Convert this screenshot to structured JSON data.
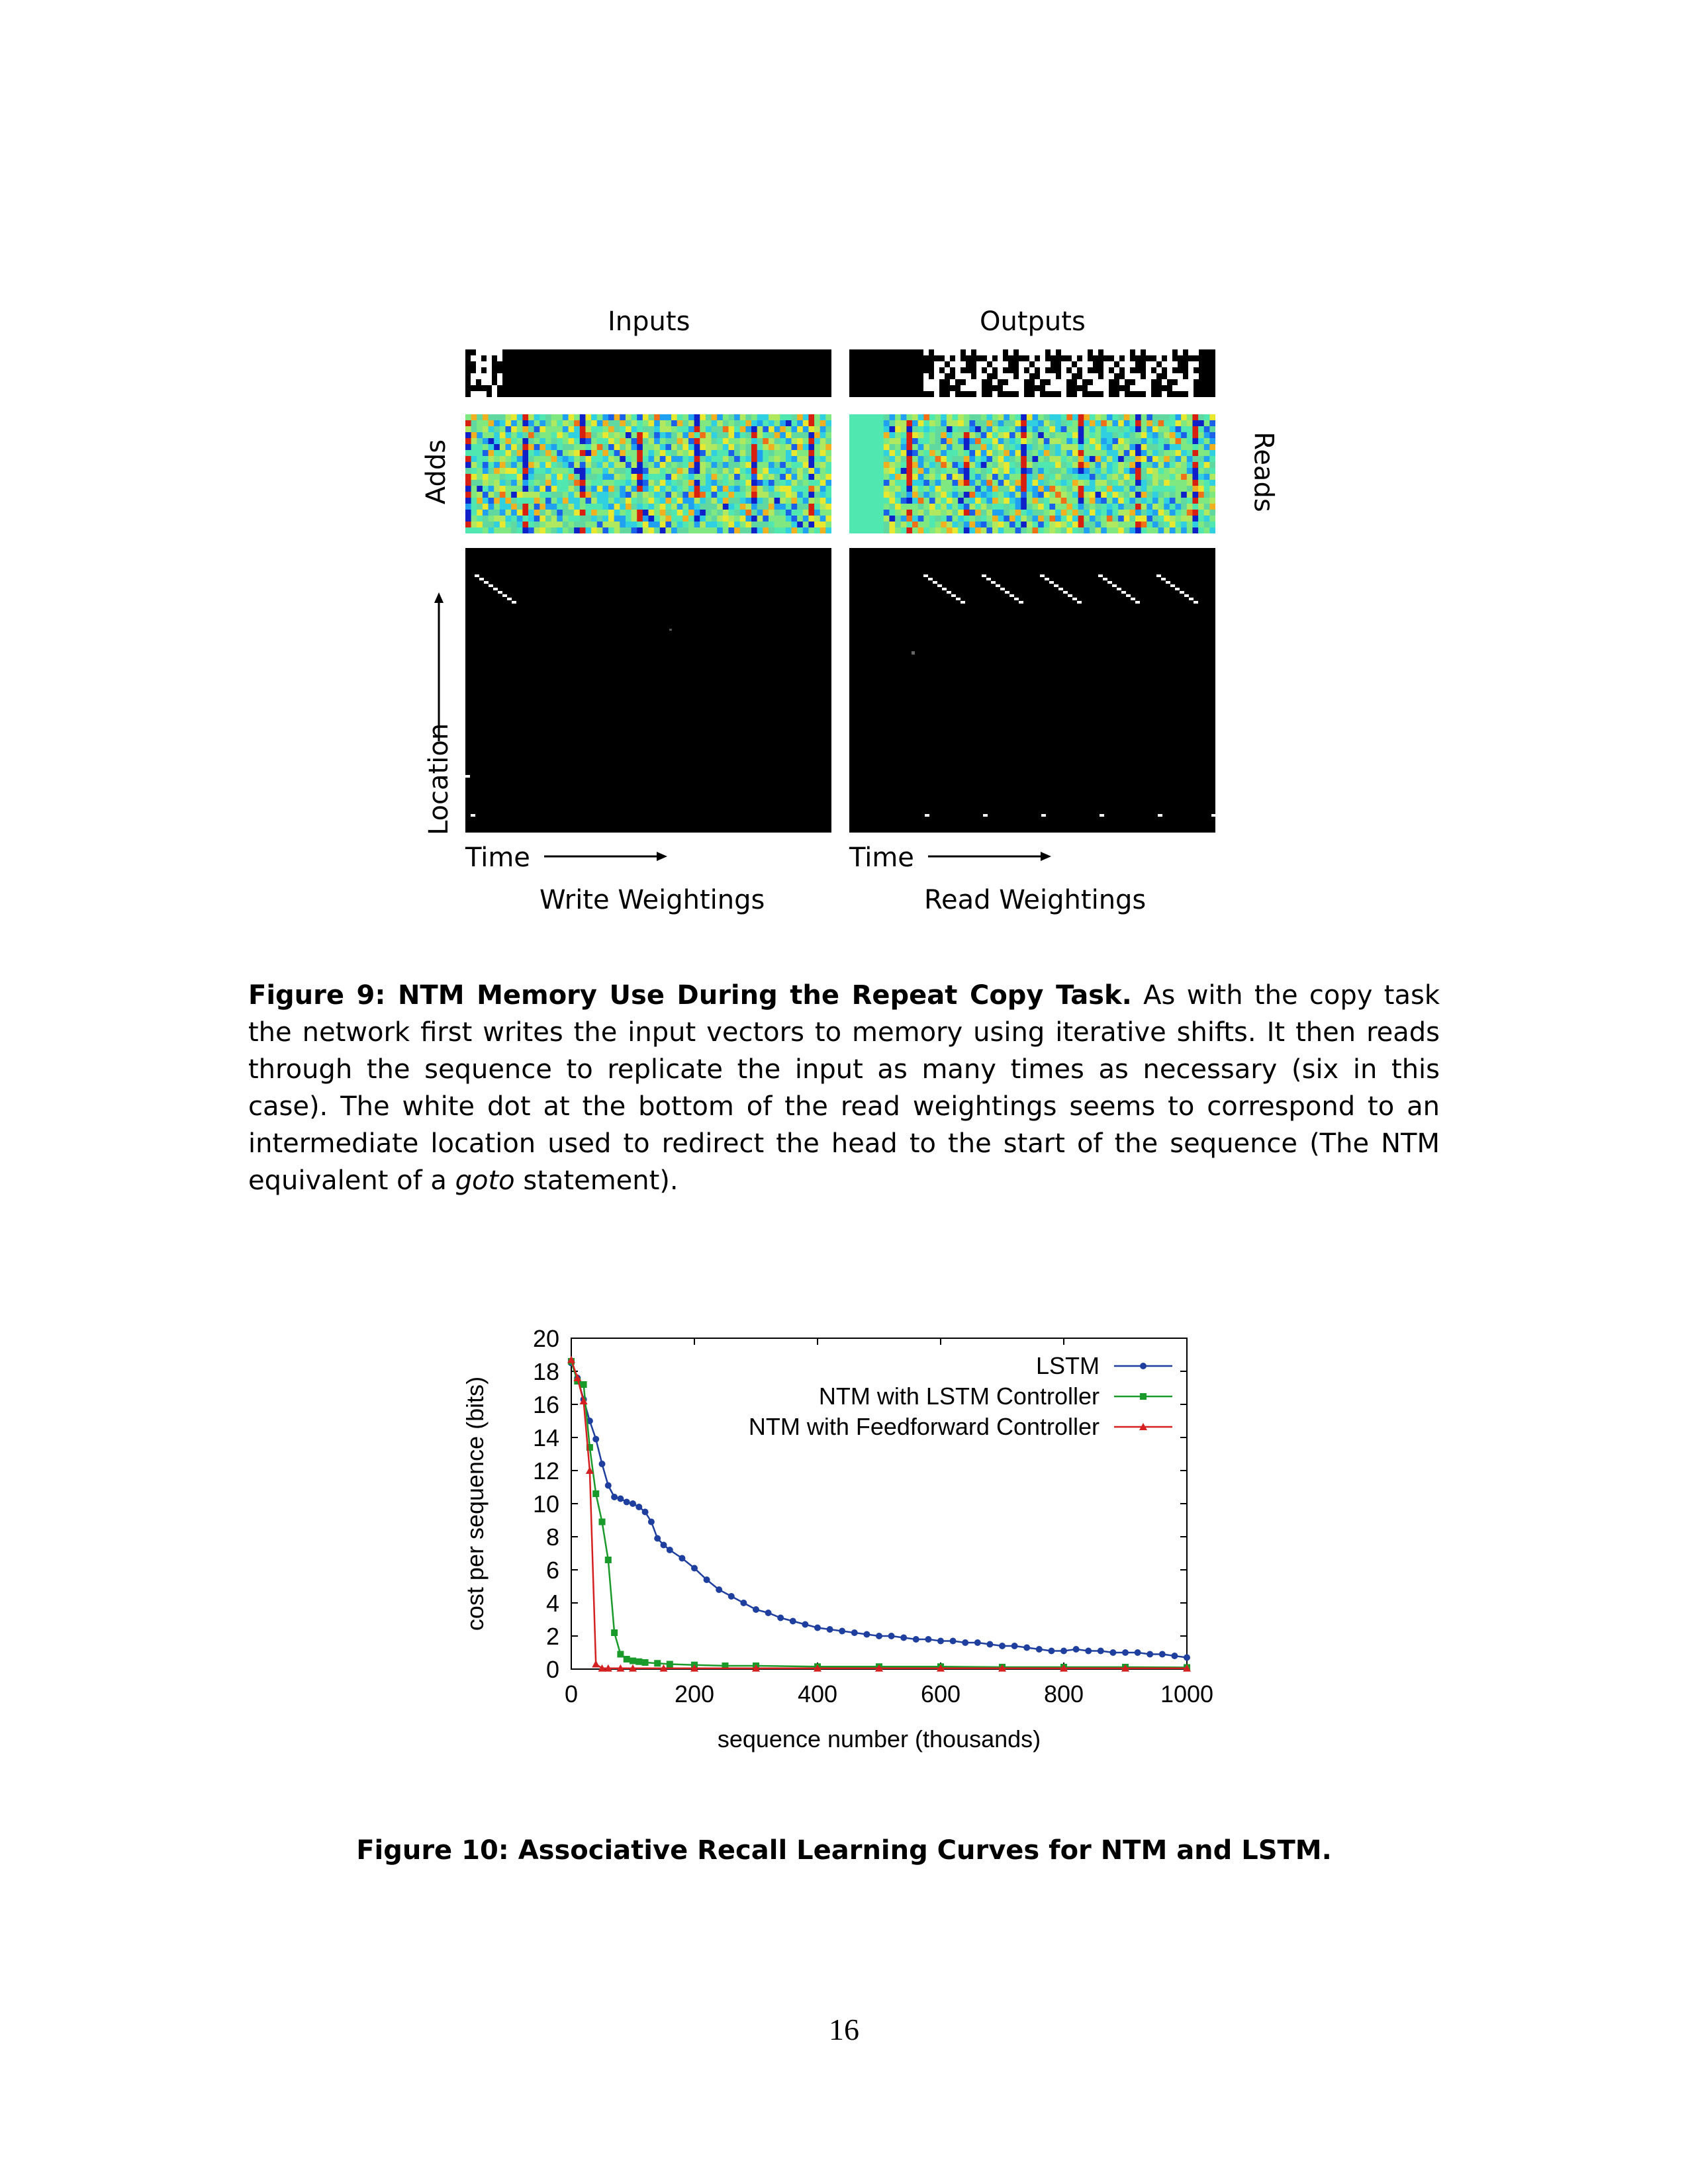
{
  "figure9": {
    "inputs_label": "Inputs",
    "outputs_label": "Outputs",
    "adds_label": "Adds",
    "reads_label": "Reads",
    "location_label": "Location",
    "time_label_left": "Time",
    "time_label_right": "Time",
    "write_label": "Write Weightings",
    "read_label": "Read Weightings",
    "caption_bold": "Figure 9: NTM Memory Use During the Repeat Copy Task.",
    "caption_text_1": " As with the copy task the network first writes the input vectors to memory using iterative shifts. It then reads through the sequence to replicate the input as many times as necessary (six in this case). The white dot at the bottom of the read weightings seems to correspond to an intermediate location used to redirect the head to the start of the sequence (The NTM equivalent of a ",
    "caption_italic": "goto",
    "caption_text_2": " statement)."
  },
  "figure10": {
    "caption": "Figure 10: Associative Recall Learning Curves for NTM and LSTM."
  },
  "page_number": "16",
  "chart_data": {
    "type": "line",
    "title": "",
    "xlabel": "sequence number (thousands)",
    "ylabel": "cost per sequence (bits)",
    "xlim": [
      0,
      1000
    ],
    "ylim": [
      0,
      20
    ],
    "xticks": [
      0,
      200,
      400,
      600,
      800,
      1000
    ],
    "yticks": [
      0,
      2,
      4,
      6,
      8,
      10,
      12,
      14,
      16,
      18,
      20
    ],
    "legend_position": "top-right",
    "series": [
      {
        "name": "LSTM",
        "color": "#1f3f9f",
        "marker": "circle",
        "x": [
          0,
          10,
          20,
          30,
          40,
          50,
          60,
          70,
          80,
          90,
          100,
          110,
          120,
          130,
          140,
          150,
          160,
          180,
          200,
          220,
          240,
          260,
          280,
          300,
          320,
          340,
          360,
          380,
          400,
          420,
          440,
          460,
          480,
          500,
          520,
          540,
          560,
          580,
          600,
          620,
          640,
          660,
          680,
          700,
          720,
          740,
          760,
          780,
          800,
          820,
          840,
          860,
          880,
          900,
          920,
          940,
          960,
          980,
          1000
        ],
        "y": [
          18.5,
          17.6,
          16.3,
          15.0,
          13.9,
          12.4,
          11.1,
          10.4,
          10.3,
          10.1,
          10.0,
          9.8,
          9.5,
          8.9,
          7.9,
          7.5,
          7.2,
          6.7,
          6.1,
          5.4,
          4.8,
          4.4,
          4.0,
          3.6,
          3.4,
          3.1,
          2.9,
          2.7,
          2.5,
          2.4,
          2.3,
          2.2,
          2.1,
          2.0,
          2.0,
          1.9,
          1.8,
          1.8,
          1.7,
          1.7,
          1.6,
          1.6,
          1.5,
          1.4,
          1.4,
          1.3,
          1.2,
          1.1,
          1.1,
          1.2,
          1.1,
          1.1,
          1.0,
          1.0,
          1.0,
          0.9,
          0.9,
          0.8,
          0.7
        ]
      },
      {
        "name": "NTM with LSTM Controller",
        "color": "#1a9a2a",
        "marker": "square",
        "x": [
          0,
          10,
          20,
          30,
          40,
          50,
          60,
          70,
          80,
          90,
          100,
          110,
          120,
          140,
          160,
          200,
          250,
          300,
          400,
          500,
          600,
          700,
          800,
          900,
          1000
        ],
        "y": [
          18.6,
          17.4,
          17.2,
          13.4,
          10.6,
          8.9,
          6.6,
          2.2,
          0.9,
          0.6,
          0.5,
          0.45,
          0.4,
          0.35,
          0.3,
          0.25,
          0.2,
          0.2,
          0.15,
          0.15,
          0.15,
          0.12,
          0.12,
          0.12,
          0.1
        ]
      },
      {
        "name": "NTM with Feedforward Controller",
        "color": "#d42020",
        "marker": "triangle",
        "x": [
          0,
          10,
          20,
          30,
          40,
          50,
          60,
          80,
          100,
          150,
          200,
          300,
          400,
          500,
          600,
          700,
          800,
          900,
          1000
        ],
        "y": [
          18.7,
          17.6,
          16.2,
          12.0,
          0.3,
          0.05,
          0.05,
          0.05,
          0.05,
          0.05,
          0.05,
          0.05,
          0.05,
          0.05,
          0.05,
          0.05,
          0.05,
          0.05,
          0.05
        ]
      }
    ]
  }
}
